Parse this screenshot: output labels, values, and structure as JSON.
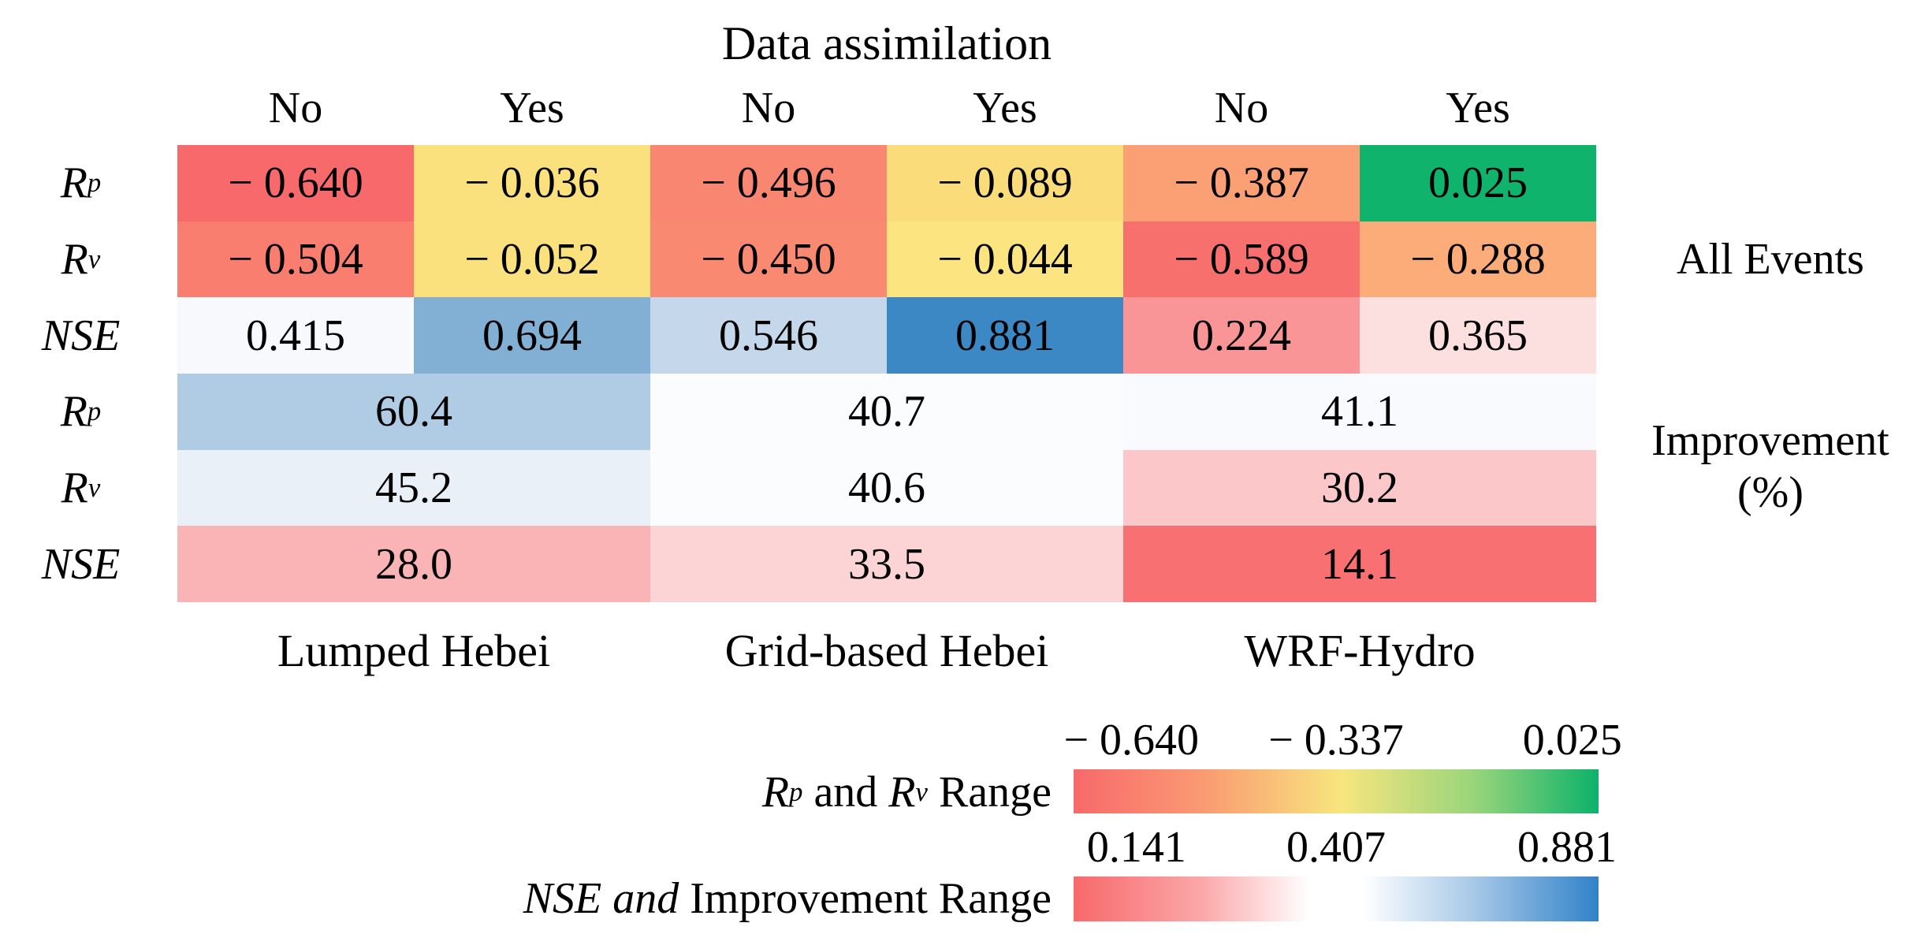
{
  "chart_data": {
    "type": "heatmap",
    "title": "Data assimilation",
    "col_headers": [
      "No",
      "Yes",
      "No",
      "Yes",
      "No",
      "Yes"
    ],
    "model_groups": [
      "Lumped Hebei",
      "Grid-based Hebei",
      "WRF-Hydro"
    ],
    "row_group_labels": {
      "all_events": "All Events",
      "improvement_line1": "Improvement",
      "improvement_line2": "(%)"
    },
    "rows": [
      {
        "metric": "Rp",
        "group": "All Events",
        "label_parts": [
          {
            "t": "R",
            "i": 1
          },
          {
            "t": "p",
            "i": 1,
            "s": 1
          }
        ],
        "cells": [
          {
            "t": "− 0.640",
            "v": -0.64,
            "c": "#F8696B",
            "span": 1
          },
          {
            "t": "− 0.036",
            "v": -0.036,
            "c": "#FBE07E",
            "span": 1
          },
          {
            "t": "− 0.496",
            "v": -0.496,
            "c": "#F98670",
            "span": 1
          },
          {
            "t": "− 0.089",
            "v": -0.089,
            "c": "#FBDC7B",
            "span": 1
          },
          {
            "t": "− 0.387",
            "v": -0.387,
            "c": "#FAA074",
            "span": 1
          },
          {
            "t": "0.025",
            "v": 0.025,
            "c": "#10B36C",
            "span": 1
          }
        ]
      },
      {
        "metric": "Rv",
        "group": "All Events",
        "label_parts": [
          {
            "t": "R",
            "i": 1
          },
          {
            "t": "v",
            "i": 1,
            "s": 1
          }
        ],
        "cells": [
          {
            "t": "− 0.504",
            "v": -0.504,
            "c": "#F97E70",
            "span": 1
          },
          {
            "t": "− 0.052",
            "v": -0.052,
            "c": "#FBE17E",
            "span": 1
          },
          {
            "t": "− 0.450",
            "v": -0.45,
            "c": "#FA8972",
            "span": 1
          },
          {
            "t": "− 0.044",
            "v": -0.044,
            "c": "#FCE480",
            "span": 1
          },
          {
            "t": "− 0.589",
            "v": -0.589,
            "c": "#F8706E",
            "span": 1
          },
          {
            "t": "− 0.288",
            "v": -0.288,
            "c": "#FBAC78",
            "span": 1
          }
        ]
      },
      {
        "metric": "NSE",
        "group": "All Events",
        "label_parts": [
          {
            "t": "NSE",
            "i": 1
          }
        ],
        "cells": [
          {
            "t": "0.415",
            "v": 0.415,
            "c": "#F8F9FD",
            "span": 1
          },
          {
            "t": "0.694",
            "v": 0.694,
            "c": "#82AFD4",
            "span": 1
          },
          {
            "t": "0.546",
            "v": 0.546,
            "c": "#C5D8EB",
            "span": 1
          },
          {
            "t": "0.881",
            "v": 0.881,
            "c": "#3C88C5",
            "span": 1
          },
          {
            "t": "0.224",
            "v": 0.224,
            "c": "#FA9597",
            "span": 1
          },
          {
            "t": "0.365",
            "v": 0.365,
            "c": "#FCDFDF",
            "span": 1
          }
        ]
      },
      {
        "metric": "Rp",
        "group": "Improvement (%)",
        "label_parts": [
          {
            "t": "R",
            "i": 1
          },
          {
            "t": "p",
            "i": 1,
            "s": 1
          }
        ],
        "cells": [
          {
            "t": "60.4",
            "v": 60.4,
            "c": "#B0CCE5",
            "span": 2
          },
          {
            "t": "40.7",
            "v": 40.7,
            "c": "#FBFCFE",
            "span": 2
          },
          {
            "t": "41.1",
            "v": 41.1,
            "c": "#F8FAFD",
            "span": 2
          }
        ]
      },
      {
        "metric": "Rv",
        "group": "Improvement (%)",
        "label_parts": [
          {
            "t": "R",
            "i": 1
          },
          {
            "t": "v",
            "i": 1,
            "s": 1
          }
        ],
        "cells": [
          {
            "t": "45.2",
            "v": 45.2,
            "c": "#E9F0F8",
            "span": 2
          },
          {
            "t": "40.6",
            "v": 40.6,
            "c": "#FBFCFE",
            "span": 2
          },
          {
            "t": "30.2",
            "v": 30.2,
            "c": "#FBC7C9",
            "span": 2
          }
        ]
      },
      {
        "metric": "NSE",
        "group": "Improvement (%)",
        "label_parts": [
          {
            "t": "NSE",
            "i": 1
          }
        ],
        "cells": [
          {
            "t": "28.0",
            "v": 28.0,
            "c": "#FBB4B6",
            "span": 2
          },
          {
            "t": "33.5",
            "v": 33.5,
            "c": "#FDD4D5",
            "span": 2
          },
          {
            "t": "14.1",
            "v": 14.1,
            "c": "#F97073",
            "span": 2
          }
        ]
      }
    ],
    "colorbars": [
      {
        "name": "rp-rv-range",
        "label_parts": [
          {
            "t": "R",
            "i": 1
          },
          {
            "t": "p",
            "i": 1,
            "s": 1
          },
          {
            "t": " and ",
            "i": 0
          },
          {
            "t": "R",
            "i": 1
          },
          {
            "t": "v",
            "i": 1,
            "s": 1
          },
          {
            "t": " Range",
            "i": 0
          }
        ],
        "ticks": [
          {
            "t": "− 0.640",
            "pos": 11
          },
          {
            "t": "− 0.337",
            "pos": 50
          },
          {
            "t": "0.025",
            "pos": 95
          }
        ],
        "stops": [
          {
            "c": "#F8696B",
            "p": 0
          },
          {
            "c": "#FA9B72",
            "p": 25
          },
          {
            "c": "#F8E57E",
            "p": 51
          },
          {
            "c": "#9BD57B",
            "p": 76
          },
          {
            "c": "#0CB26B",
            "p": 100
          }
        ]
      },
      {
        "name": "nse-improvement-range",
        "label_parts": [
          {
            "t": "NSE and ",
            "i": 1
          },
          {
            "t": "Improvement Range",
            "i": 0
          }
        ],
        "ticks": [
          {
            "t": "0.141",
            "pos": 12
          },
          {
            "t": "0.407",
            "pos": 50
          },
          {
            "t": "0.881",
            "pos": 94
          }
        ],
        "stops": [
          {
            "c": "#F8696B",
            "p": 0
          },
          {
            "c": "#FBA6A8",
            "p": 24
          },
          {
            "c": "#FFFFFF",
            "p": 45
          },
          {
            "c": "#FFFFFF",
            "p": 55
          },
          {
            "c": "#A8C9E8",
            "p": 76
          },
          {
            "c": "#3182C9",
            "p": 100
          }
        ]
      }
    ]
  }
}
